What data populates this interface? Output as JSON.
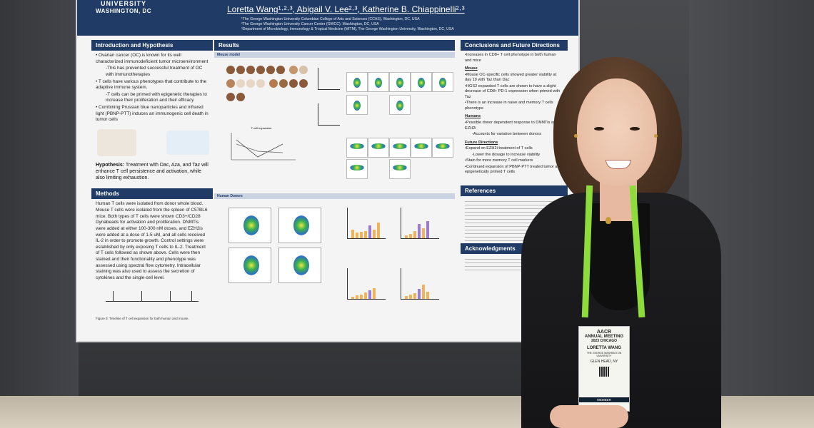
{
  "header": {
    "logo_line1": "UNIVERSITY",
    "logo_line2": "WASHINGTON, DC",
    "authors": "Loretta Wang¹·²·³, Abigail V. Lee²·³, Katherine B. Chiappinelli²·³",
    "affil1": "¹The George Washington University Columbian College of Arts and Sciences (CCAS), Washington, DC, USA",
    "affil2": "²The George Washington University Cancer Center (GWCC), Washington, DC, USA",
    "affil3": "³Department of Microbiology, Immunology & Tropical Medicine (MITM), The George Washington University, Washington, DC, USA"
  },
  "intro": {
    "title": "Introduction and Hypothesis",
    "b1": "Ovarian cancer (OC) is known for its well characterized immunodeficient tumor microenvironment",
    "b1a": "This has prevented successful treatment of OC with immunotherapies",
    "b2": "T cells have various phenotypes that contribute to the adaptive immune system.",
    "b2a": "T cells can be primed with epigenetic therapies to increase their proliferation and their efficacy",
    "b3": "Combining Prussian blue nanoparticles and infrared light (PBNP-PTT) induces an immunogenic cell death in tumor cells",
    "hyp_label": "Hypothesis:",
    "hyp": "Treatment with Dac, Aza, and Taz will enhance T cell persistence and activation, while also limiting exhaustion."
  },
  "methods": {
    "title": "Methods",
    "text": "Human T cells were isolated from donor whole blood. Mouse T cells were isolated from the spleen of C57BL6 mice. Both types of T cells were shown CD3+/CD28 Dynabeads for activation and proliferation. DNMTis were added at either 100-300 nM doses, and EZH2is were added at a dose of 1-5 uM, and all cells received IL-2 in order to promote growth. Control settings were established by only exposing T cells to IL-2. Treatment of T cells followed as shown above. Cells were then stained and their functionality and phenotype was assessed using spectral flow cytometry. Intracellular staining was also used to assess the secretion of cytokines and the single-cell level.",
    "fig3": "Figure 3: Timeline of T cell expansion for both human and mouse."
  },
  "results": {
    "title": "Results",
    "mouse": "Mouse model",
    "human": "Human Donors",
    "fig5_title": "T cell expansion"
  },
  "conclusions": {
    "title": "Conclusions and Future Directions",
    "c1": "Increases in CD8+ T cell phenotype in both human and mice",
    "mouse_h": "Mouse",
    "m1": "Mouse OC-specific cells showed greater viability at day 19 with Taz than Dac",
    "m2": "HGS2 expanded T cells are shown to have a slight decrease of CD8+ PD-1 expression when primed with Taz",
    "m3": "There is an increase in naive and memory T cells phenotype",
    "humans_h": "Humans",
    "h1": "Possible donor dependent response to DNMTis and EZH2i",
    "h1a": "Accounts for variation between donors",
    "future_h": "Future Directions",
    "f1": "Expand on EZH2i treatment of T cells",
    "f1a": "Lower the dosage to increase viability",
    "f2": "Stain for more memory T cell markers",
    "f3": "Continued expansion of PBNP-PTT treated tumor and epigenetically primed T cells",
    "references": "References",
    "ack": "Acknowledgments"
  },
  "badge": {
    "org": "AACR",
    "meeting": "ANNUAL MEETING",
    "year": "2023 CHICAGO",
    "name": "LORETTA WANG",
    "univ": "THE GEORGE WASHINGTON UNIVERSITY",
    "city": "GLEN HEAD, NY",
    "member": "MEMBER"
  }
}
